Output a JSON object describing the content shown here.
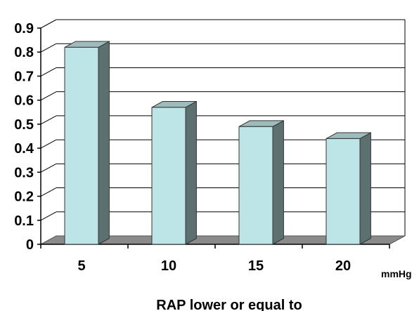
{
  "chart_data": {
    "type": "bar",
    "style": "3d",
    "categories": [
      "5",
      "10",
      "15",
      "20"
    ],
    "values": [
      0.82,
      0.57,
      0.49,
      0.44
    ],
    "ylim": [
      0,
      0.9
    ],
    "yticks": [
      "0",
      "0.1",
      "0.2",
      "0.3",
      "0.4",
      "0.5",
      "0.6",
      "0.7",
      "0.8",
      "0.9"
    ],
    "xunit": "mmHg",
    "xlabel": "RAP lower or equal to",
    "ylabel": "",
    "title": "",
    "grid": true,
    "legend": false,
    "colors": {
      "bar_front": "#bde4e6",
      "bar_side": "#5c7070",
      "bar_top": "#9fbcbc",
      "floor": "#8a8a8a",
      "grid": "#000000"
    }
  }
}
